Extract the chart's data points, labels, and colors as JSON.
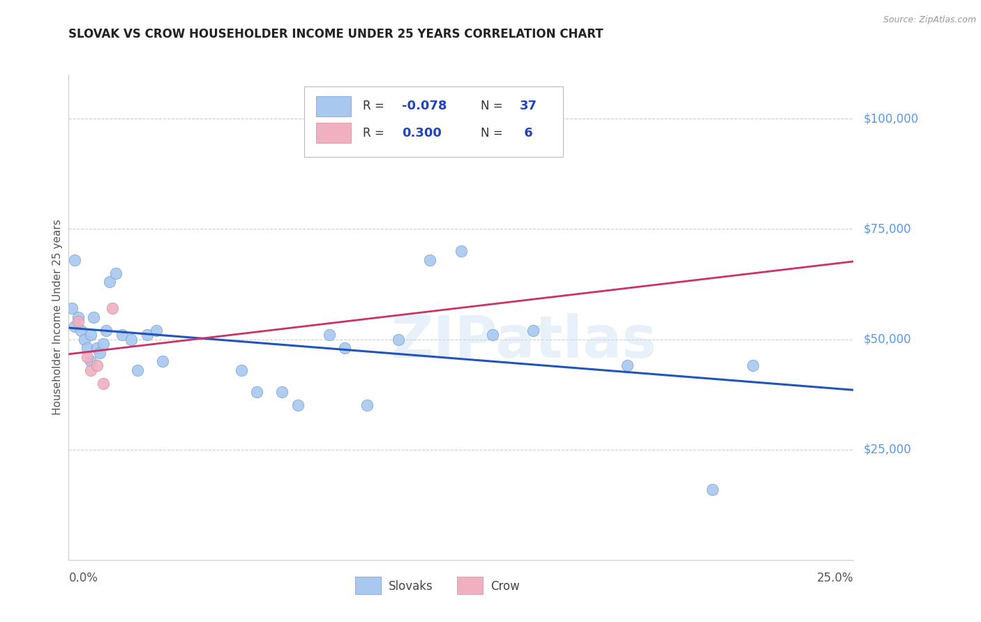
{
  "title": "SLOVAK VS CROW HOUSEHOLDER INCOME UNDER 25 YEARS CORRELATION CHART",
  "source": "Source: ZipAtlas.com",
  "ylabel": "Householder Income Under 25 years",
  "watermark": "ZIPatlas",
  "xlim": [
    0.0,
    0.25
  ],
  "ylim": [
    0,
    110000
  ],
  "slovaks_x": [
    0.001,
    0.002,
    0.002,
    0.003,
    0.004,
    0.005,
    0.006,
    0.007,
    0.007,
    0.008,
    0.009,
    0.01,
    0.011,
    0.012,
    0.013,
    0.015,
    0.017,
    0.02,
    0.022,
    0.025,
    0.028,
    0.03,
    0.055,
    0.06,
    0.068,
    0.073,
    0.083,
    0.088,
    0.095,
    0.105,
    0.115,
    0.125,
    0.135,
    0.148,
    0.178,
    0.205,
    0.218
  ],
  "slovaks_y": [
    57000,
    53000,
    68000,
    55000,
    52000,
    50000,
    48000,
    45000,
    51000,
    55000,
    48000,
    47000,
    49000,
    52000,
    63000,
    65000,
    51000,
    50000,
    43000,
    51000,
    52000,
    45000,
    43000,
    38000,
    38000,
    35000,
    51000,
    48000,
    35000,
    50000,
    68000,
    70000,
    51000,
    52000,
    44000,
    16000,
    44000
  ],
  "crow_x": [
    0.003,
    0.006,
    0.007,
    0.009,
    0.011,
    0.014
  ],
  "crow_y": [
    54000,
    46000,
    43000,
    44000,
    40000,
    57000
  ],
  "blue_scatter_color": "#a8c8f0",
  "blue_scatter_edge": "#6699cc",
  "pink_scatter_color": "#f0b0c0",
  "pink_scatter_edge": "#cc8899",
  "blue_line_color": "#2255bb",
  "pink_line_color": "#cc3366",
  "pink_dashed_color": "#cc99aa",
  "background_color": "#ffffff",
  "grid_color": "#cccccc",
  "right_label_color": "#5599ee",
  "title_color": "#222222",
  "source_color": "#999999",
  "ylabel_color": "#555555",
  "xlabel_color": "#555555",
  "y_ticks": [
    25000,
    50000,
    75000,
    100000
  ],
  "y_tick_labels": [
    "$25,000",
    "$50,000",
    "$75,000",
    "$100,000"
  ],
  "R_slovak": -0.078,
  "N_slovak": 37,
  "R_crow": 0.3,
  "N_crow": 6,
  "legend_label1": "Slovaks",
  "legend_label2": "Crow"
}
